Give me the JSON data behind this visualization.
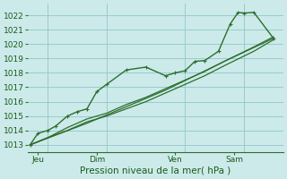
{
  "bg_color": "#cceaea",
  "grid_color": "#99cccc",
  "line_color": "#2d6e2d",
  "vline_color": "#7aaa8a",
  "xlabel": "Pression niveau de la mer( hPa )",
  "ylim": [
    1012.5,
    1022.8
  ],
  "yticks": [
    1013,
    1014,
    1015,
    1016,
    1017,
    1018,
    1019,
    1020,
    1021,
    1022
  ],
  "day_labels": [
    "Jeu",
    "Dim",
    "Ven",
    "Sam"
  ],
  "day_positions": [
    0.5,
    3.5,
    7.5,
    10.5
  ],
  "vline_positions": [
    1.0,
    4.0,
    8.0,
    11.0
  ],
  "xlim": [
    0,
    13
  ],
  "series": [
    {
      "x": [
        0.1,
        0.5,
        1.0,
        1.4,
        2.0,
        2.5,
        3.0,
        3.5,
        4.0,
        5.0,
        6.0,
        7.0,
        7.5,
        8.0,
        8.5,
        9.0,
        9.7,
        10.3,
        10.7,
        11.0,
        11.5,
        12.5
      ],
      "y": [
        1013.0,
        1013.8,
        1014.0,
        1014.3,
        1015.0,
        1015.3,
        1015.5,
        1016.7,
        1017.2,
        1018.2,
        1018.4,
        1017.8,
        1018.0,
        1018.15,
        1018.8,
        1018.85,
        1019.5,
        1021.4,
        1022.2,
        1022.15,
        1022.2,
        1020.4
      ]
    },
    {
      "x": [
        0.1,
        1.0,
        2.0,
        3.0,
        4.0,
        5.0,
        6.0,
        7.0,
        8.0,
        9.0,
        10.0,
        11.5,
        12.5
      ],
      "y": [
        1013.0,
        1013.5,
        1014.2,
        1014.8,
        1015.2,
        1015.8,
        1016.3,
        1016.9,
        1017.5,
        1018.1,
        1018.8,
        1019.8,
        1020.5
      ]
    },
    {
      "x": [
        0.1,
        1.0,
        2.0,
        3.0,
        4.0,
        5.0,
        6.0,
        7.0,
        8.0,
        9.0,
        10.0,
        11.5,
        12.5
      ],
      "y": [
        1013.0,
        1013.5,
        1014.0,
        1014.6,
        1015.0,
        1015.5,
        1016.0,
        1016.6,
        1017.2,
        1017.8,
        1018.5,
        1019.5,
        1020.3
      ]
    },
    {
      "x": [
        0.1,
        3.0,
        7.0,
        10.0,
        12.5
      ],
      "y": [
        1013.0,
        1014.5,
        1016.8,
        1018.8,
        1020.4
      ]
    }
  ]
}
